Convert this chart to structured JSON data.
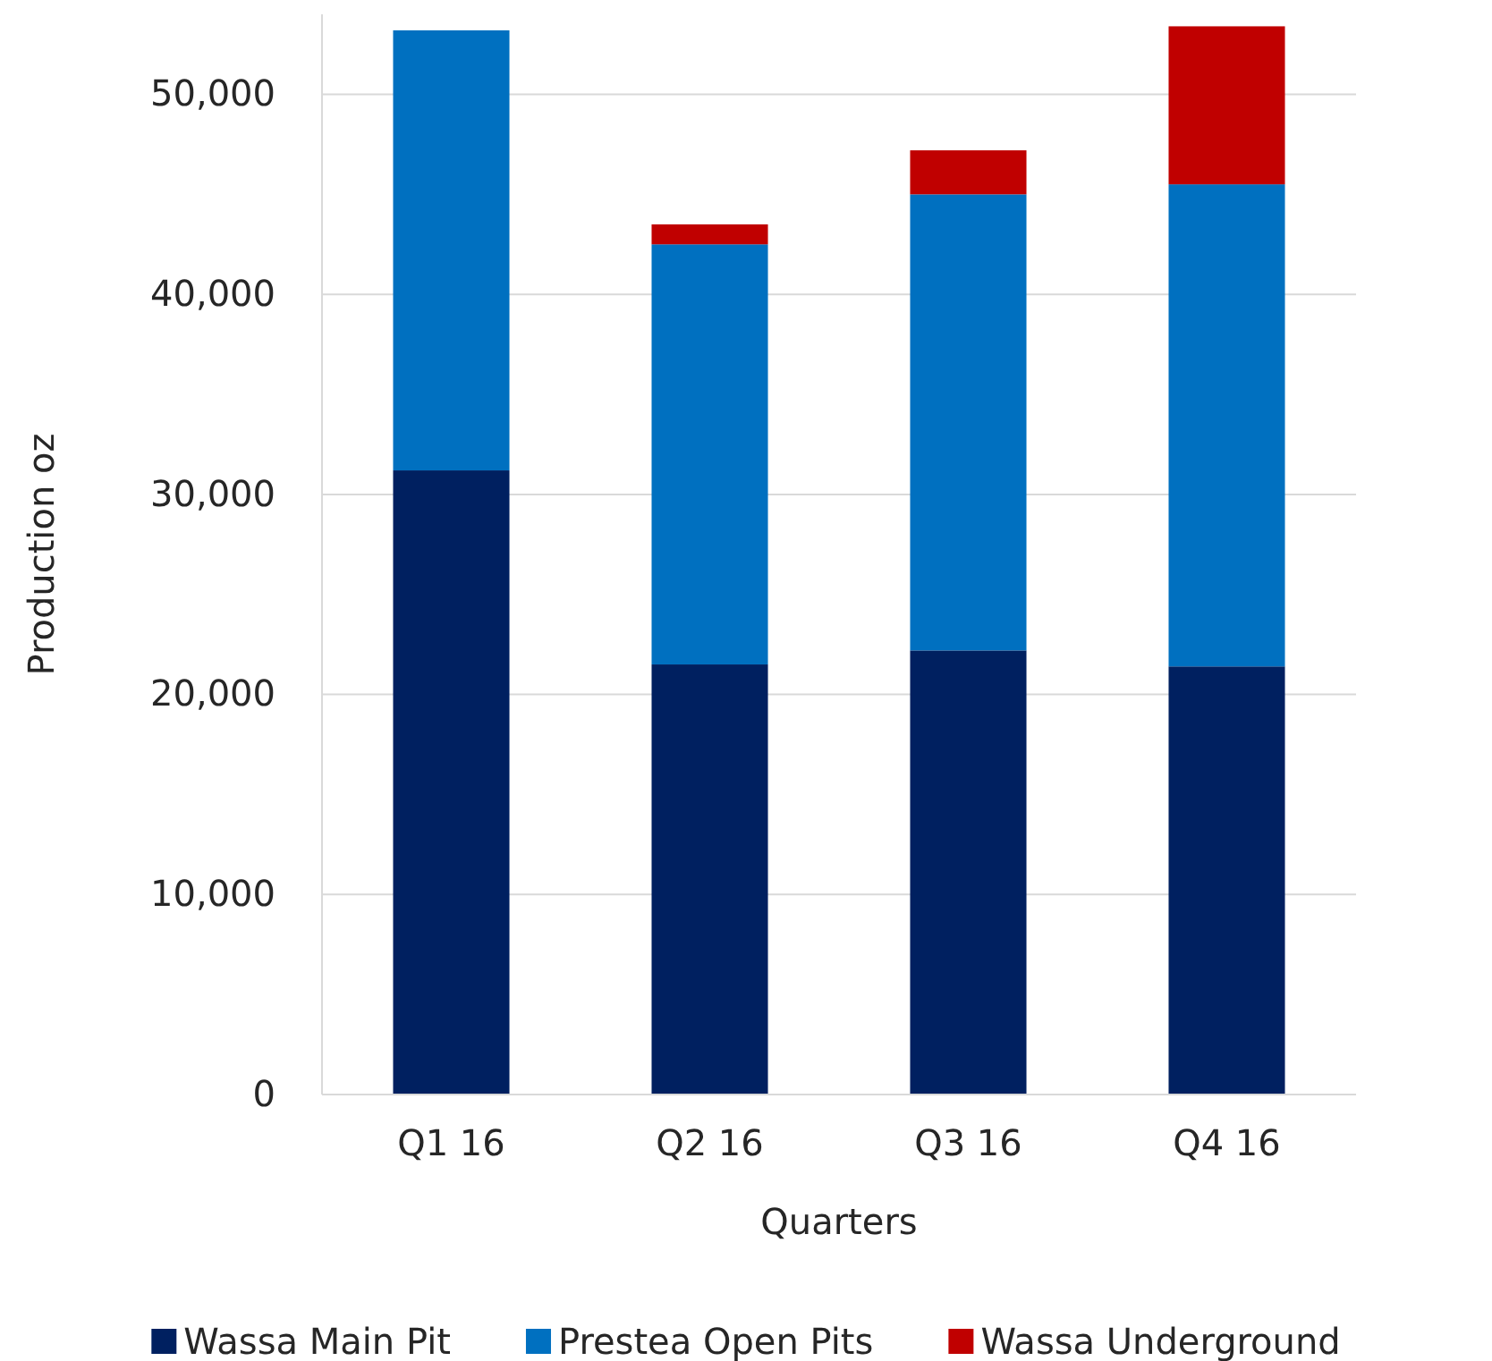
{
  "chart_data": {
    "type": "bar",
    "stacked": true,
    "xlabel": "Quarters",
    "ylabel": "Production oz",
    "categories": [
      "Q1 16",
      "Q2 16",
      "Q3 16",
      "Q4 16"
    ],
    "series": [
      {
        "name": "Wassa Main Pit",
        "color": "#002060",
        "values": [
          31200,
          21500,
          22200,
          21400
        ]
      },
      {
        "name": "Prestea Open Pits",
        "color": "#0070c0",
        "values": [
          22000,
          21000,
          22800,
          24100
        ]
      },
      {
        "name": "Wassa Underground",
        "color": "#c00000",
        "values": [
          0,
          1000,
          2200,
          7900
        ]
      }
    ],
    "ylim": [
      0,
      54000
    ],
    "yticks": [
      {
        "value": 0,
        "label": "0"
      },
      {
        "value": 10000,
        "label": "10,000"
      },
      {
        "value": 20000,
        "label": "20,000"
      },
      {
        "value": 30000,
        "label": "30,000"
      },
      {
        "value": 40000,
        "label": "40,000"
      },
      {
        "value": 50000,
        "label": "50,000"
      }
    ],
    "grid": "y",
    "legend": "bottom"
  }
}
